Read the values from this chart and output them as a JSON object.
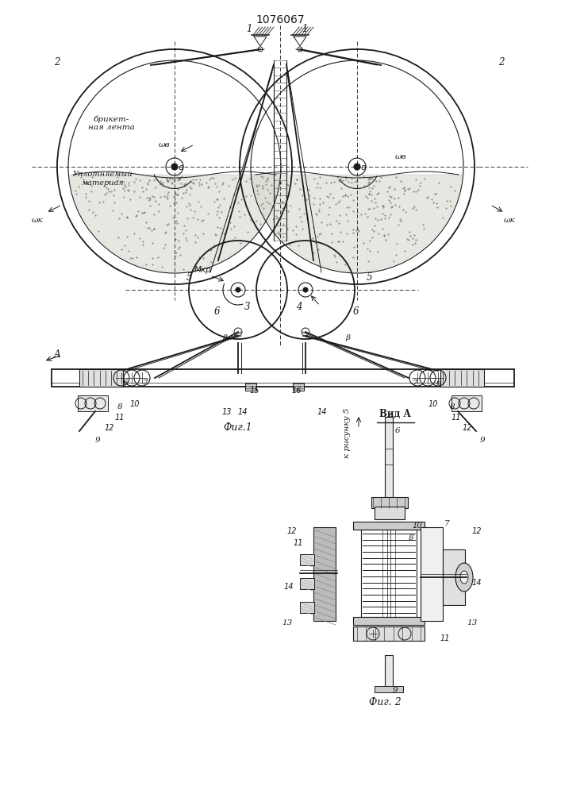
{
  "title": "1076067",
  "fig1_label": "Фиг.1",
  "fig2_label": "Фиг. 2",
  "vid_label": "Вид А",
  "k_risunku_label": "к рисунку 5",
  "briket_label": "брикет-\nная лента",
  "uplot_label": "Уплотняемый\nматериал",
  "bg_color": "#ffffff",
  "line_color": "#1a1a1a"
}
